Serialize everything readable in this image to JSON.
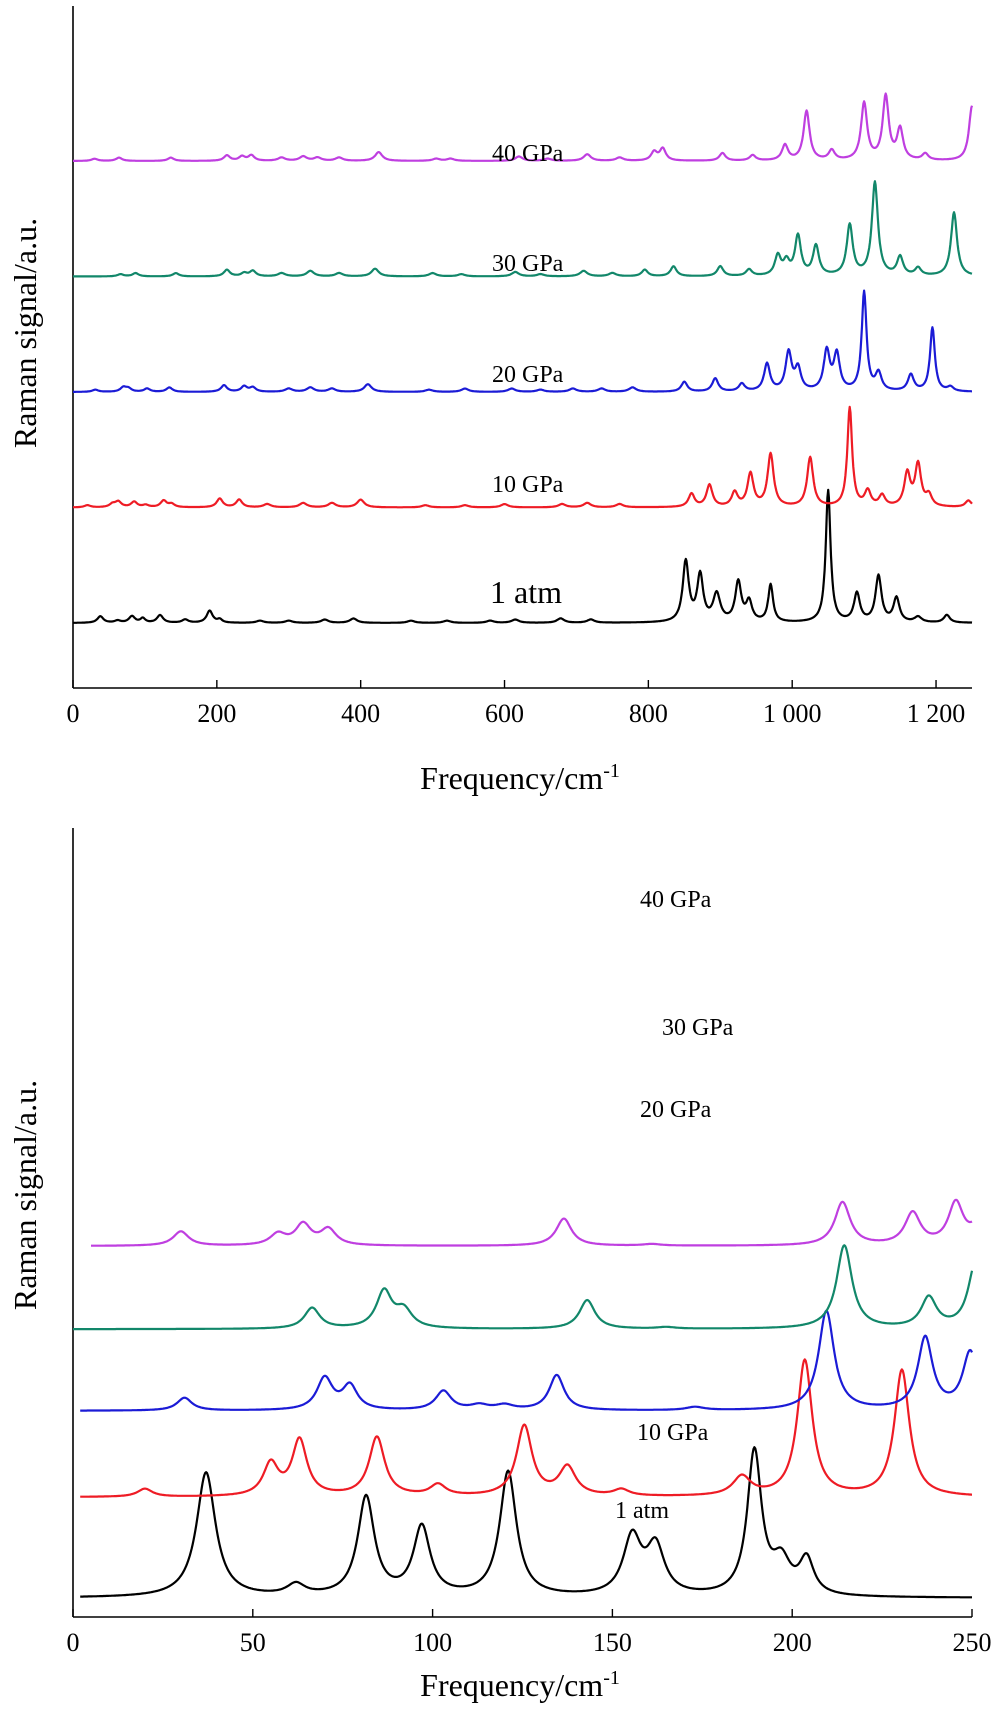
{
  "colors": {
    "1 atm": "#000000",
    "10 GPa": "#ee1c25",
    "20 GPa": "#1b1bd6",
    "30 GPa": "#12876a",
    "40 GPa": "#bf3fe0"
  },
  "chart_data": [
    {
      "type": "line",
      "xlabel": "Frequency/cm",
      "xlabel_sup": "-1",
      "ylabel": "Raman signal/a.u.",
      "xlim": [
        0,
        1250
      ],
      "xticks": [
        0,
        200,
        400,
        600,
        800,
        1000,
        1200
      ],
      "xtick_labels": [
        "0",
        "200",
        "400",
        "600",
        "800",
        "1 000",
        "1 200"
      ],
      "series": [
        {
          "name": "1 atm",
          "offset": 0.0,
          "peaks": [
            [
              38,
              0.06,
              5
            ],
            [
              62,
              0.02,
              5
            ],
            [
              82,
              0.06,
              5
            ],
            [
              97,
              0.04,
              4
            ],
            [
              121,
              0.07,
              5
            ],
            [
              156,
              0.03,
              5
            ],
            [
              190,
              0.11,
              5
            ],
            [
              204,
              0.03,
              4
            ],
            [
              260,
              0.02,
              6
            ],
            [
              300,
              0.02,
              6
            ],
            [
              350,
              0.03,
              6
            ],
            [
              390,
              0.04,
              6
            ],
            [
              470,
              0.02,
              6
            ],
            [
              520,
              0.02,
              6
            ],
            [
              580,
              0.02,
              6
            ],
            [
              615,
              0.03,
              6
            ],
            [
              678,
              0.04,
              6
            ],
            [
              720,
              0.03,
              6
            ],
            [
              852,
              0.55,
              5
            ],
            [
              872,
              0.42,
              5
            ],
            [
              895,
              0.25,
              6
            ],
            [
              925,
              0.36,
              5
            ],
            [
              940,
              0.18,
              5
            ],
            [
              970,
              0.34,
              4
            ],
            [
              1050,
              1.2,
              4
            ],
            [
              1090,
              0.26,
              5
            ],
            [
              1120,
              0.42,
              5
            ],
            [
              1145,
              0.22,
              5
            ],
            [
              1175,
              0.05,
              6
            ],
            [
              1215,
              0.07,
              5
            ]
          ]
        },
        {
          "name": "10 GPa",
          "offset": 1.05,
          "peaks": [
            [
              20,
              0.02,
              5
            ],
            [
              55,
              0.03,
              5
            ],
            [
              63,
              0.05,
              5
            ],
            [
              85,
              0.05,
              5
            ],
            [
              101,
              0.02,
              5
            ],
            [
              126,
              0.06,
              5
            ],
            [
              137,
              0.03,
              5
            ],
            [
              204,
              0.08,
              5
            ],
            [
              231,
              0.07,
              5
            ],
            [
              270,
              0.03,
              6
            ],
            [
              320,
              0.04,
              6
            ],
            [
              360,
              0.04,
              6
            ],
            [
              400,
              0.07,
              6
            ],
            [
              490,
              0.02,
              6
            ],
            [
              545,
              0.02,
              6
            ],
            [
              600,
              0.03,
              6
            ],
            [
              680,
              0.03,
              6
            ],
            [
              715,
              0.04,
              6
            ],
            [
              760,
              0.03,
              6
            ],
            [
              860,
              0.12,
              5
            ],
            [
              885,
              0.2,
              5
            ],
            [
              920,
              0.13,
              5
            ],
            [
              942,
              0.3,
              5
            ],
            [
              970,
              0.48,
              5
            ],
            [
              1025,
              0.45,
              5
            ],
            [
              1080,
              0.9,
              4
            ],
            [
              1105,
              0.14,
              5
            ],
            [
              1125,
              0.1,
              5
            ],
            [
              1160,
              0.3,
              5
            ],
            [
              1175,
              0.38,
              5
            ],
            [
              1190,
              0.1,
              5
            ],
            [
              1245,
              0.06,
              5
            ]
          ]
        },
        {
          "name": "20 GPa",
          "offset": 2.1,
          "peaks": [
            [
              31,
              0.02,
              5
            ],
            [
              70,
              0.04,
              5
            ],
            [
              77,
              0.03,
              5
            ],
            [
              103,
              0.03,
              5
            ],
            [
              134,
              0.04,
              5
            ],
            [
              210,
              0.06,
              5
            ],
            [
              238,
              0.05,
              5
            ],
            [
              250,
              0.04,
              5
            ],
            [
              300,
              0.03,
              6
            ],
            [
              330,
              0.04,
              6
            ],
            [
              360,
              0.03,
              6
            ],
            [
              410,
              0.07,
              6
            ],
            [
              495,
              0.02,
              6
            ],
            [
              545,
              0.03,
              6
            ],
            [
              610,
              0.03,
              6
            ],
            [
              650,
              0.02,
              6
            ],
            [
              695,
              0.03,
              6
            ],
            [
              735,
              0.03,
              6
            ],
            [
              778,
              0.04,
              6
            ],
            [
              850,
              0.09,
              5
            ],
            [
              893,
              0.12,
              5
            ],
            [
              930,
              0.07,
              5
            ],
            [
              965,
              0.25,
              5
            ],
            [
              995,
              0.35,
              5
            ],
            [
              1008,
              0.2,
              5
            ],
            [
              1048,
              0.36,
              5
            ],
            [
              1062,
              0.33,
              5
            ],
            [
              1100,
              0.9,
              4
            ],
            [
              1120,
              0.16,
              5
            ],
            [
              1165,
              0.15,
              5
            ],
            [
              1195,
              0.58,
              4
            ],
            [
              1220,
              0.04,
              5
            ]
          ]
        },
        {
          "name": "30 GPa",
          "offset": 3.15,
          "peaks": [
            [
              66,
              0.02,
              5
            ],
            [
              87,
              0.03,
              5
            ],
            [
              143,
              0.03,
              5
            ],
            [
              214,
              0.06,
              5
            ],
            [
              238,
              0.03,
              5
            ],
            [
              250,
              0.05,
              5
            ],
            [
              290,
              0.03,
              6
            ],
            [
              330,
              0.05,
              6
            ],
            [
              370,
              0.03,
              6
            ],
            [
              420,
              0.07,
              6
            ],
            [
              500,
              0.03,
              6
            ],
            [
              540,
              0.02,
              6
            ],
            [
              615,
              0.04,
              6
            ],
            [
              650,
              0.02,
              6
            ],
            [
              710,
              0.05,
              6
            ],
            [
              750,
              0.03,
              6
            ],
            [
              795,
              0.06,
              5
            ],
            [
              835,
              0.09,
              5
            ],
            [
              900,
              0.09,
              5
            ],
            [
              940,
              0.06,
              5
            ],
            [
              980,
              0.18,
              5
            ],
            [
              992,
              0.12,
              5
            ],
            [
              1008,
              0.36,
              5
            ],
            [
              1033,
              0.27,
              5
            ],
            [
              1080,
              0.46,
              5
            ],
            [
              1115,
              0.85,
              5
            ],
            [
              1150,
              0.17,
              5
            ],
            [
              1175,
              0.07,
              5
            ],
            [
              1225,
              0.58,
              5
            ]
          ]
        },
        {
          "name": "40 GPa",
          "offset": 4.2,
          "peaks": [
            [
              30,
              0.02,
              5
            ],
            [
              64,
              0.03,
              5
            ],
            [
              136,
              0.03,
              5
            ],
            [
              214,
              0.05,
              5
            ],
            [
              235,
              0.04,
              5
            ],
            [
              248,
              0.05,
              5
            ],
            [
              290,
              0.03,
              6
            ],
            [
              320,
              0.04,
              6
            ],
            [
              340,
              0.03,
              6
            ],
            [
              370,
              0.03,
              6
            ],
            [
              425,
              0.08,
              6
            ],
            [
              505,
              0.02,
              6
            ],
            [
              525,
              0.02,
              6
            ],
            [
              620,
              0.04,
              6
            ],
            [
              660,
              0.02,
              6
            ],
            [
              715,
              0.06,
              6
            ],
            [
              760,
              0.03,
              6
            ],
            [
              808,
              0.08,
              5
            ],
            [
              820,
              0.11,
              5
            ],
            [
              903,
              0.07,
              5
            ],
            [
              945,
              0.05,
              5
            ],
            [
              990,
              0.14,
              5
            ],
            [
              1020,
              0.45,
              5
            ],
            [
              1055,
              0.09,
              5
            ],
            [
              1100,
              0.52,
              5
            ],
            [
              1130,
              0.58,
              5
            ],
            [
              1150,
              0.28,
              5
            ],
            [
              1185,
              0.06,
              5
            ],
            [
              1250,
              0.5,
              5
            ]
          ]
        }
      ]
    },
    {
      "type": "line",
      "xlabel": "Frequency/cm",
      "xlabel_sup": "-1",
      "ylabel": "Raman signal/a.u.",
      "xlim": [
        0,
        250
      ],
      "xticks": [
        0,
        50,
        100,
        150,
        200,
        250
      ],
      "xtick_labels": [
        "0",
        "50",
        "100",
        "150",
        "200",
        "250"
      ],
      "series": [
        {
          "name": "1 atm",
          "offset": 0.0,
          "x_start": 2,
          "peaks": [
            [
              37,
              0.78,
              3.2
            ],
            [
              62,
              0.07,
              3
            ],
            [
              81.5,
              0.62,
              2.8
            ],
            [
              97,
              0.43,
              2.8
            ],
            [
              121,
              0.78,
              2.8
            ],
            [
              155.5,
              0.36,
              3
            ],
            [
              162,
              0.3,
              3
            ],
            [
              189.5,
              0.9,
              2.4
            ],
            [
              197,
              0.2,
              3
            ],
            [
              204,
              0.22,
              2.4
            ]
          ]
        },
        {
          "name": "10 GPa",
          "offset": 0.63,
          "x_start": 2,
          "peaks": [
            [
              20,
              0.05,
              2.5
            ],
            [
              55,
              0.2,
              2.5
            ],
            [
              63,
              0.35,
              2.5
            ],
            [
              84.5,
              0.37,
              2.6
            ],
            [
              101.5,
              0.07,
              2.6
            ],
            [
              125.5,
              0.44,
              2.6
            ],
            [
              137.5,
              0.18,
              2.8
            ],
            [
              152.5,
              0.04,
              2.6
            ],
            [
              186,
              0.12,
              3
            ],
            [
              203.5,
              0.85,
              2.5
            ],
            [
              230.5,
              0.79,
              2.5
            ]
          ]
        },
        {
          "name": "20 GPa",
          "offset": 1.17,
          "x_start": 2,
          "peaks": [
            [
              31,
              0.08,
              2.5
            ],
            [
              70,
              0.2,
              2.6
            ],
            [
              77,
              0.15,
              2.5
            ],
            [
              103,
              0.12,
              2.6
            ],
            [
              113,
              0.03,
              3
            ],
            [
              120,
              0.03,
              3
            ],
            [
              134.5,
              0.22,
              2.5
            ],
            [
              173,
              0.02,
              3
            ],
            [
              209.5,
              0.62,
              2.6
            ],
            [
              237,
              0.45,
              2.5
            ],
            [
              249.5,
              0.36,
              2.5
            ]
          ]
        },
        {
          "name": "30 GPa",
          "offset": 1.68,
          "x_start": 0,
          "peaks": [
            [
              66.5,
              0.13,
              2.6
            ],
            [
              86.5,
              0.23,
              2.6
            ],
            [
              92,
              0.11,
              2.8
            ],
            [
              143,
              0.18,
              2.6
            ],
            [
              165,
              0.01,
              3
            ],
            [
              214.5,
              0.52,
              2.6
            ],
            [
              238,
              0.19,
              2.6
            ],
            [
              251,
              0.41,
              2.5
            ]
          ]
        },
        {
          "name": "40 GPa",
          "offset": 2.2,
          "x_start": 5,
          "peaks": [
            [
              30,
              0.09,
              2.6
            ],
            [
              57,
              0.07,
              2.6
            ],
            [
              64,
              0.13,
              2.6
            ],
            [
              71,
              0.1,
              2.6
            ],
            [
              136.5,
              0.17,
              2.6
            ],
            [
              161,
              0.01,
              3
            ],
            [
              214,
              0.27,
              2.6
            ],
            [
              233.5,
              0.2,
              2.6
            ],
            [
              245.5,
              0.26,
              2.5
            ],
            [
              252,
              0.14,
              2.5
            ]
          ]
        }
      ]
    }
  ]
}
